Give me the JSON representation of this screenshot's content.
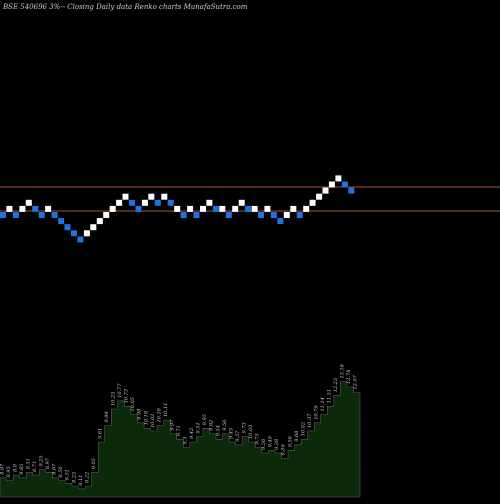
{
  "chart_data": {
    "type": "renko",
    "title": "BSE 540696  3%-- Closing Daily data  Renko  charts MunafaSutra.com",
    "colors": {
      "background": "#000000",
      "up_brick": "#ffffff",
      "down_brick": "#1e73e0",
      "reference_line": "#a0522d",
      "volume_fill": "#0a2a0a",
      "volume_stroke": "#5a5a5a",
      "label": "#cfcfcf"
    },
    "bricks": [
      {
        "dir": "down",
        "level": 0
      },
      {
        "dir": "up",
        "level": 1
      },
      {
        "dir": "down",
        "level": 0
      },
      {
        "dir": "up",
        "level": 1
      },
      {
        "dir": "up",
        "level": 2
      },
      {
        "dir": "down",
        "level": 1
      },
      {
        "dir": "down",
        "level": 0
      },
      {
        "dir": "up",
        "level": 1
      },
      {
        "dir": "down",
        "level": 0
      },
      {
        "dir": "down",
        "level": -1
      },
      {
        "dir": "down",
        "level": -2
      },
      {
        "dir": "down",
        "level": -3
      },
      {
        "dir": "down",
        "level": -4
      },
      {
        "dir": "up",
        "level": -3
      },
      {
        "dir": "up",
        "level": -2
      },
      {
        "dir": "up",
        "level": -1
      },
      {
        "dir": "up",
        "level": 0
      },
      {
        "dir": "up",
        "level": 1
      },
      {
        "dir": "up",
        "level": 2
      },
      {
        "dir": "up",
        "level": 3
      },
      {
        "dir": "down",
        "level": 2
      },
      {
        "dir": "down",
        "level": 1
      },
      {
        "dir": "up",
        "level": 2
      },
      {
        "dir": "up",
        "level": 3
      },
      {
        "dir": "down",
        "level": 2
      },
      {
        "dir": "up",
        "level": 3
      },
      {
        "dir": "down",
        "level": 2
      },
      {
        "dir": "up",
        "level": 1
      },
      {
        "dir": "down",
        "level": 0
      },
      {
        "dir": "up",
        "level": 1
      },
      {
        "dir": "down",
        "level": 0
      },
      {
        "dir": "up",
        "level": 1
      },
      {
        "dir": "up",
        "level": 2
      },
      {
        "dir": "down",
        "level": 1
      },
      {
        "dir": "up",
        "level": 1
      },
      {
        "dir": "down",
        "level": 0
      },
      {
        "dir": "up",
        "level": 1
      },
      {
        "dir": "up",
        "level": 2
      },
      {
        "dir": "down",
        "level": 1
      },
      {
        "dir": "up",
        "level": 1
      },
      {
        "dir": "down",
        "level": 0
      },
      {
        "dir": "up",
        "level": 1
      },
      {
        "dir": "down",
        "level": 0
      },
      {
        "dir": "down",
        "level": -1
      },
      {
        "dir": "up",
        "level": 0
      },
      {
        "dir": "up",
        "level": 1
      },
      {
        "dir": "down",
        "level": 0
      },
      {
        "dir": "up",
        "level": 1
      },
      {
        "dir": "up",
        "level": 2
      },
      {
        "dir": "up",
        "level": 3
      },
      {
        "dir": "up",
        "level": 4
      },
      {
        "dir": "up",
        "level": 5
      },
      {
        "dir": "up",
        "level": 6
      },
      {
        "dir": "down",
        "level": 5
      },
      {
        "dir": "down",
        "level": 4
      }
    ],
    "volume": [
      {
        "v": 7,
        "label": "8.97"
      },
      {
        "v": 6,
        "label": "8.95"
      },
      {
        "v": 8,
        "label": "8.8"
      },
      {
        "v": 7,
        "label": "8.85"
      },
      {
        "v": 9,
        "label": "8.51"
      },
      {
        "v": 8,
        "label": "8.71"
      },
      {
        "v": 10,
        "label": "9.25"
      },
      {
        "v": 9,
        "label": "8.97"
      },
      {
        "v": 7,
        "label": "8.67"
      },
      {
        "v": 6,
        "label": "8.56"
      },
      {
        "v": 5,
        "label": "8.51"
      },
      {
        "v": 4,
        "label": "8.25"
      },
      {
        "v": 3,
        "label": "8.11"
      },
      {
        "v": 4,
        "label": "8.22"
      },
      {
        "v": 9,
        "label": "9.05"
      },
      {
        "v": 20,
        "label": "9.61"
      },
      {
        "v": 26,
        "label": "9.98"
      },
      {
        "v": 32,
        "label": "10.25"
      },
      {
        "v": 35,
        "label": "10.77"
      },
      {
        "v": 33,
        "label": "10.73"
      },
      {
        "v": 30,
        "label": "10.05"
      },
      {
        "v": 27,
        "label": "9.98"
      },
      {
        "v": 25,
        "label": "10.18"
      },
      {
        "v": 24,
        "label": "10.02"
      },
      {
        "v": 26,
        "label": "10.18"
      },
      {
        "v": 28,
        "label": "10.11"
      },
      {
        "v": 23,
        "label": "9.97"
      },
      {
        "v": 21,
        "label": "9.71"
      },
      {
        "v": 18,
        "label": "9.5"
      },
      {
        "v": 20,
        "label": "9.42"
      },
      {
        "v": 22,
        "label": "9.51"
      },
      {
        "v": 25,
        "label": "9.95"
      },
      {
        "v": 23,
        "label": "9.62"
      },
      {
        "v": 21,
        "label": "9.54"
      },
      {
        "v": 23,
        "label": "9.56"
      },
      {
        "v": 20,
        "label": "9.45"
      },
      {
        "v": 19,
        "label": "9.37"
      },
      {
        "v": 22,
        "label": "9.73"
      },
      {
        "v": 20,
        "label": "10.03"
      },
      {
        "v": 18,
        "label": "9.75"
      },
      {
        "v": 16,
        "label": "9.56"
      },
      {
        "v": 17,
        "label": "9.49"
      },
      {
        "v": 16,
        "label": "9.38"
      },
      {
        "v": 14,
        "label": "9.09"
      },
      {
        "v": 17,
        "label": "9.56"
      },
      {
        "v": 19,
        "label": "9.68"
      },
      {
        "v": 21,
        "label": "10.02"
      },
      {
        "v": 24,
        "label": "10.37"
      },
      {
        "v": 27,
        "label": "10.79"
      },
      {
        "v": 30,
        "label": "11.14"
      },
      {
        "v": 33,
        "label": "11.51"
      },
      {
        "v": 37,
        "label": "12.23"
      },
      {
        "v": 42,
        "label": "13.18"
      },
      {
        "v": 40,
        "label": "12.78"
      },
      {
        "v": 38,
        "label": "12.07"
      }
    ]
  }
}
